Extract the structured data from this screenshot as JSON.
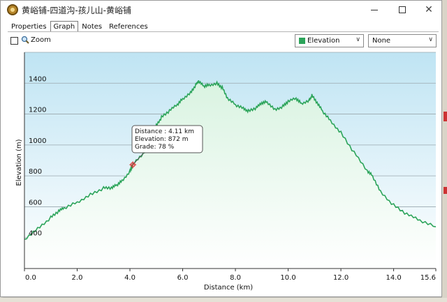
{
  "window": {
    "title": "黄峪铺-四道沟-孩儿山-黄峪铺"
  },
  "tabs": [
    {
      "label": "Properties"
    },
    {
      "label": "Graph"
    },
    {
      "label": "Notes"
    },
    {
      "label": "References"
    }
  ],
  "active_tab": "Graph",
  "zoom": {
    "label": "Zoom",
    "checked": false
  },
  "selectors": {
    "primary": {
      "value": "Elevation",
      "color": "#2ca45a"
    },
    "secondary": {
      "value": "None"
    }
  },
  "tooltip": {
    "distance": "Distance : 4.11 km",
    "elevation": "Elevation: 872 m",
    "grade": "Grade: 78 %"
  },
  "colors": {
    "line": "#2ca45a",
    "fill_top": "#dff4e6",
    "bg_top": "#bfe4f3",
    "bg_bottom": "#ffffff"
  },
  "chart_data": {
    "type": "area",
    "title": "",
    "xlabel": "Distance  (km)",
    "ylabel": "Elevation (m)",
    "xlim": [
      0,
      15.6
    ],
    "ylim": [
      200,
      1600
    ],
    "xticks": [
      "0.0",
      "2.0",
      "4.0",
      "6.0",
      "8.0",
      "10.0",
      "12.0",
      "14.0",
      "15.6"
    ],
    "xtick_values": [
      0,
      2,
      4,
      6,
      8,
      10,
      12,
      14,
      15.6
    ],
    "yticks": [
      "400",
      "600",
      "800",
      "1000",
      "1200",
      "1400"
    ],
    "ytick_values": [
      400,
      600,
      800,
      1000,
      1200,
      1400
    ],
    "grid": true,
    "marker": {
      "x": 4.11,
      "y": 872
    },
    "series": [
      {
        "x": [
          0,
          0.5,
          1.0,
          1.3,
          1.5,
          2.0,
          2.5,
          3.0,
          3.3,
          3.5,
          3.7,
          4.0,
          4.11,
          4.5,
          4.8,
          5.0,
          5.2,
          5.5,
          5.8,
          6.0,
          6.3,
          6.5,
          6.6,
          6.8,
          7.0,
          7.3,
          7.5,
          7.7,
          8.0,
          8.3,
          8.5,
          8.8,
          9.0,
          9.2,
          9.5,
          9.8,
          10.0,
          10.3,
          10.5,
          10.8,
          10.9,
          11.1,
          11.3,
          11.6,
          12.0,
          12.5,
          13.0,
          13.2,
          13.5,
          14.0,
          14.5,
          15.0,
          15.6
        ],
        "y": [
          390,
          460,
          530,
          570,
          590,
          630,
          680,
          720,
          720,
          740,
          770,
          830,
          872,
          940,
          1030,
          1130,
          1180,
          1220,
          1260,
          1300,
          1340,
          1390,
          1410,
          1380,
          1390,
          1400,
          1370,
          1300,
          1260,
          1240,
          1220,
          1240,
          1270,
          1280,
          1230,
          1250,
          1280,
          1300,
          1270,
          1290,
          1320,
          1270,
          1220,
          1160,
          1080,
          950,
          830,
          800,
          700,
          610,
          550,
          510,
          470
        ]
      }
    ]
  }
}
